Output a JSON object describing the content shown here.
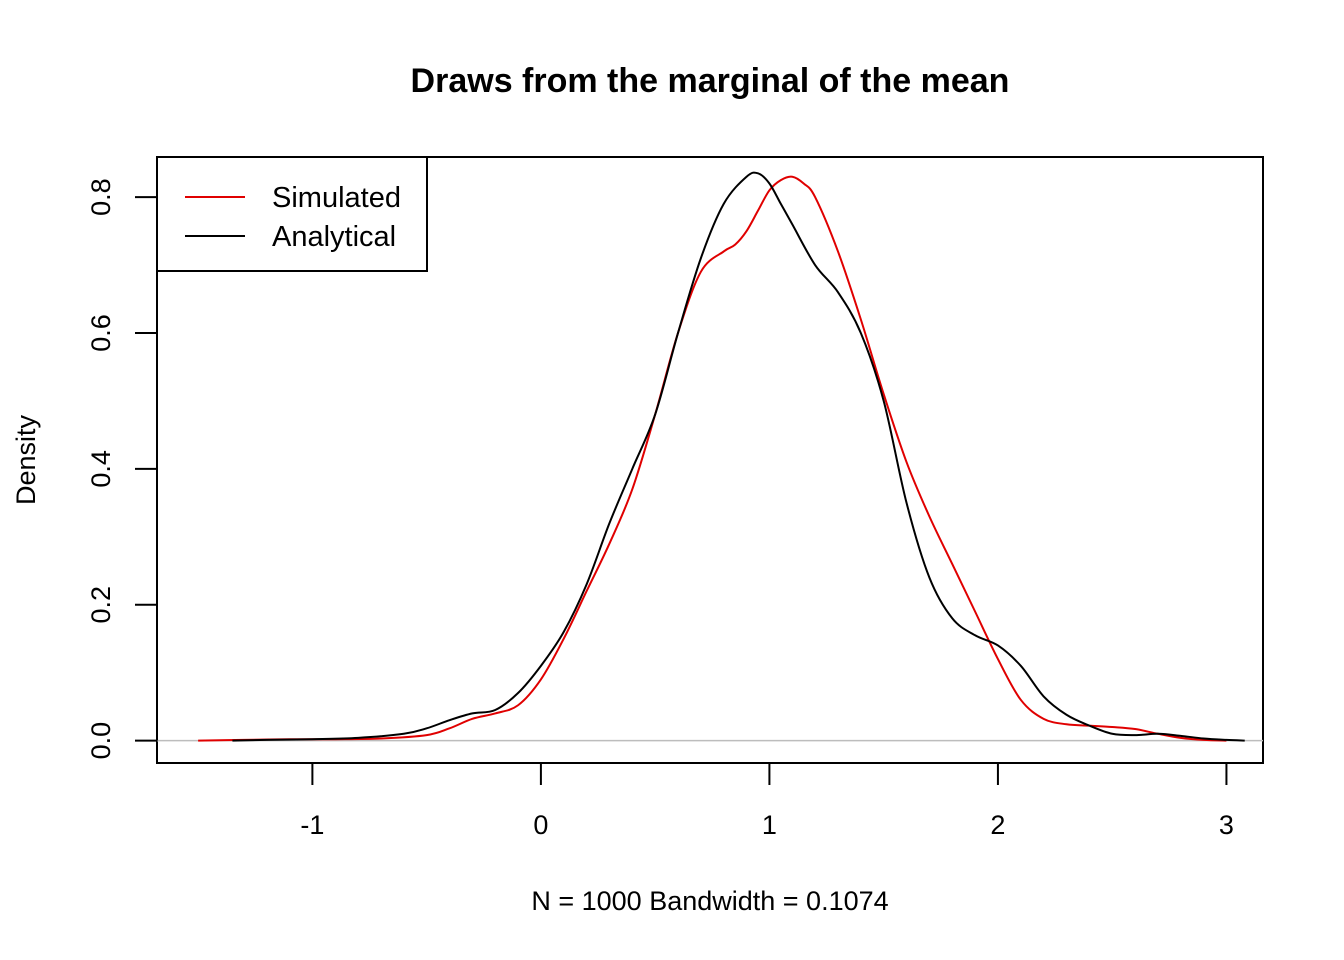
{
  "chart_data": {
    "type": "line",
    "title": "Draws from the marginal of the mean",
    "xlabel": "N = 1000   Bandwidth = 0.1074",
    "ylabel": "Density",
    "xlim": [
      -1.68,
      3.16
    ],
    "ylim": [
      -0.033,
      0.859
    ],
    "x_ticks": [
      -1,
      0,
      1,
      2,
      3
    ],
    "x_tick_labels": [
      "-1",
      "0",
      "1",
      "2",
      "3"
    ],
    "y_ticks": [
      0.0,
      0.2,
      0.4,
      0.6,
      0.8
    ],
    "y_tick_labels": [
      "0.0",
      "0.2",
      "0.4",
      "0.6",
      "0.8"
    ],
    "baseline": 0,
    "grid": false,
    "legend_position": "top-left",
    "series": [
      {
        "name": "Simulated",
        "color": "#e00000",
        "points": [
          [
            -1.5,
            0.0
          ],
          [
            -1.3,
            0.001
          ],
          [
            -1.1,
            0.002
          ],
          [
            -0.9,
            0.002
          ],
          [
            -0.7,
            0.003
          ],
          [
            -0.5,
            0.008
          ],
          [
            -0.4,
            0.018
          ],
          [
            -0.3,
            0.032
          ],
          [
            -0.2,
            0.04
          ],
          [
            -0.1,
            0.052
          ],
          [
            0.0,
            0.09
          ],
          [
            0.1,
            0.15
          ],
          [
            0.2,
            0.22
          ],
          [
            0.3,
            0.29
          ],
          [
            0.4,
            0.37
          ],
          [
            0.5,
            0.48
          ],
          [
            0.6,
            0.6
          ],
          [
            0.7,
            0.69
          ],
          [
            0.8,
            0.72
          ],
          [
            0.85,
            0.73
          ],
          [
            0.9,
            0.75
          ],
          [
            0.95,
            0.78
          ],
          [
            1.0,
            0.81
          ],
          [
            1.05,
            0.825
          ],
          [
            1.1,
            0.83
          ],
          [
            1.15,
            0.82
          ],
          [
            1.2,
            0.8
          ],
          [
            1.3,
            0.72
          ],
          [
            1.4,
            0.62
          ],
          [
            1.5,
            0.51
          ],
          [
            1.6,
            0.41
          ],
          [
            1.7,
            0.33
          ],
          [
            1.8,
            0.26
          ],
          [
            1.9,
            0.19
          ],
          [
            2.0,
            0.12
          ],
          [
            2.1,
            0.06
          ],
          [
            2.2,
            0.032
          ],
          [
            2.3,
            0.024
          ],
          [
            2.4,
            0.022
          ],
          [
            2.5,
            0.02
          ],
          [
            2.6,
            0.017
          ],
          [
            2.7,
            0.01
          ],
          [
            2.8,
            0.004
          ],
          [
            2.9,
            0.001
          ],
          [
            3.0,
            0.0
          ]
        ]
      },
      {
        "name": "Analytical",
        "color": "#000000",
        "points": [
          [
            -1.35,
            0.0
          ],
          [
            -1.2,
            0.001
          ],
          [
            -1.0,
            0.002
          ],
          [
            -0.8,
            0.004
          ],
          [
            -0.6,
            0.01
          ],
          [
            -0.5,
            0.018
          ],
          [
            -0.4,
            0.03
          ],
          [
            -0.3,
            0.04
          ],
          [
            -0.2,
            0.045
          ],
          [
            -0.1,
            0.07
          ],
          [
            0.0,
            0.11
          ],
          [
            0.1,
            0.16
          ],
          [
            0.2,
            0.23
          ],
          [
            0.3,
            0.32
          ],
          [
            0.4,
            0.4
          ],
          [
            0.5,
            0.48
          ],
          [
            0.6,
            0.6
          ],
          [
            0.7,
            0.71
          ],
          [
            0.8,
            0.79
          ],
          [
            0.9,
            0.83
          ],
          [
            0.95,
            0.835
          ],
          [
            1.0,
            0.82
          ],
          [
            1.05,
            0.79
          ],
          [
            1.1,
            0.76
          ],
          [
            1.2,
            0.7
          ],
          [
            1.3,
            0.66
          ],
          [
            1.4,
            0.6
          ],
          [
            1.5,
            0.5
          ],
          [
            1.6,
            0.35
          ],
          [
            1.7,
            0.24
          ],
          [
            1.8,
            0.18
          ],
          [
            1.9,
            0.155
          ],
          [
            2.0,
            0.14
          ],
          [
            2.1,
            0.11
          ],
          [
            2.2,
            0.065
          ],
          [
            2.3,
            0.038
          ],
          [
            2.4,
            0.022
          ],
          [
            2.5,
            0.01
          ],
          [
            2.6,
            0.008
          ],
          [
            2.7,
            0.01
          ],
          [
            2.8,
            0.007
          ],
          [
            2.9,
            0.003
          ],
          [
            3.0,
            0.001
          ],
          [
            3.08,
            0.0
          ]
        ]
      }
    ]
  }
}
